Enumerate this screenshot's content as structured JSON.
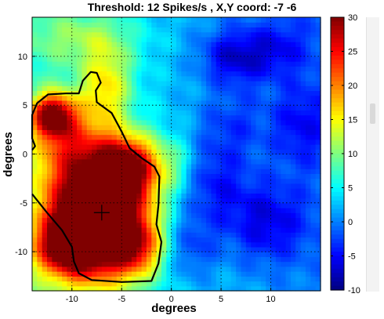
{
  "chart_data": {
    "type": "heatmap",
    "title": "Threshold: 12 Spikes/s , X,Y coord:  -7 -6",
    "xlabel": "degrees",
    "ylabel": "degrees",
    "xlim": [
      -14,
      15
    ],
    "ylim": [
      -14,
      14
    ],
    "x_ticks": [
      -10,
      -5,
      0,
      5,
      10
    ],
    "y_ticks": [
      10,
      5,
      0,
      -5,
      -10
    ],
    "grid": true,
    "colorbar": {
      "range": [
        -10,
        30
      ],
      "ticks": [
        30,
        25,
        20,
        15,
        10,
        5,
        0,
        -5,
        -10
      ],
      "colormap": "jet"
    },
    "threshold_spikes_per_s": 12,
    "marker": {
      "label": "receptive field centre",
      "x": -7,
      "y": -6
    },
    "hotspots": [
      {
        "x": -7.5,
        "y": -6.5,
        "peak": 38,
        "sx": 3.6,
        "sy": 4.2
      },
      {
        "x": -4.5,
        "y": -1.2,
        "peak": 22,
        "sx": 2.4,
        "sy": 2.2
      },
      {
        "x": -12,
        "y": 4,
        "peak": 22,
        "sx": 1.5,
        "sy": 1.5
      },
      {
        "x": -10.5,
        "y": 1.5,
        "peak": 12,
        "sx": 2.5,
        "sy": 3
      },
      {
        "x": -6.5,
        "y": 7,
        "peak": 11,
        "sx": 1.8,
        "sy": 3
      },
      {
        "x": -10.5,
        "y": -9.5,
        "peak": 16,
        "sx": 2.3,
        "sy": 2
      },
      {
        "x": -3.5,
        "y": -9.5,
        "peak": 12,
        "sx": 2,
        "sy": 2
      },
      {
        "x": -9,
        "y": 12,
        "peak": 6,
        "sx": 4,
        "sy": 2
      },
      {
        "x": 0.5,
        "y": -1,
        "peak": 4,
        "sx": 1.5,
        "sy": 2
      }
    ],
    "coldspots": [
      {
        "x": 6.5,
        "y": 10,
        "depth": -8,
        "sx": 2.5,
        "sy": 2
      },
      {
        "x": 9.5,
        "y": -7,
        "depth": -7,
        "sx": 3,
        "sy": 3
      },
      {
        "x": 4,
        "y": -3,
        "depth": -6,
        "sx": 2.5,
        "sy": 3
      },
      {
        "x": 1.5,
        "y": -9.5,
        "depth": -6,
        "sx": 2,
        "sy": 2.5
      },
      {
        "x": 13,
        "y": 3,
        "depth": -5,
        "sx": 2,
        "sy": 3
      },
      {
        "x": 6,
        "y": 3,
        "depth": -4,
        "sx": 2.5,
        "sy": 2.5
      },
      {
        "x": 11,
        "y": 11,
        "depth": -4,
        "sx": 2,
        "sy": 2
      }
    ],
    "contour": [
      [
        -14,
        -4.1
      ],
      [
        -12.5,
        -6
      ],
      [
        -11,
        -7.8
      ],
      [
        -10,
        -9.5
      ],
      [
        -9.8,
        -11
      ],
      [
        -9.3,
        -12.2
      ],
      [
        -8,
        -12.9
      ],
      [
        -5,
        -13.1
      ],
      [
        -2,
        -13
      ],
      [
        -1.3,
        -11.2
      ],
      [
        -1,
        -9
      ],
      [
        -1.5,
        -7.2
      ],
      [
        -1.3,
        -5.2
      ],
      [
        -1.2,
        -2.3
      ],
      [
        -1.7,
        -1.3
      ],
      [
        -3,
        -0.4
      ],
      [
        -4.2,
        0.6
      ],
      [
        -5,
        2.3
      ],
      [
        -6,
        4.2
      ],
      [
        -7.5,
        5.3
      ],
      [
        -7.6,
        6.5
      ],
      [
        -7.1,
        7.3
      ],
      [
        -7.5,
        8.3
      ],
      [
        -8.1,
        8.4
      ],
      [
        -8.9,
        7.5
      ],
      [
        -9.3,
        6.2
      ],
      [
        -10.6,
        6.2
      ],
      [
        -12.4,
        6.1
      ],
      [
        -13.5,
        5.2
      ],
      [
        -14,
        4
      ],
      [
        -14,
        1.6
      ],
      [
        -13.7,
        0.8
      ],
      [
        -14,
        0.4
      ]
    ]
  }
}
